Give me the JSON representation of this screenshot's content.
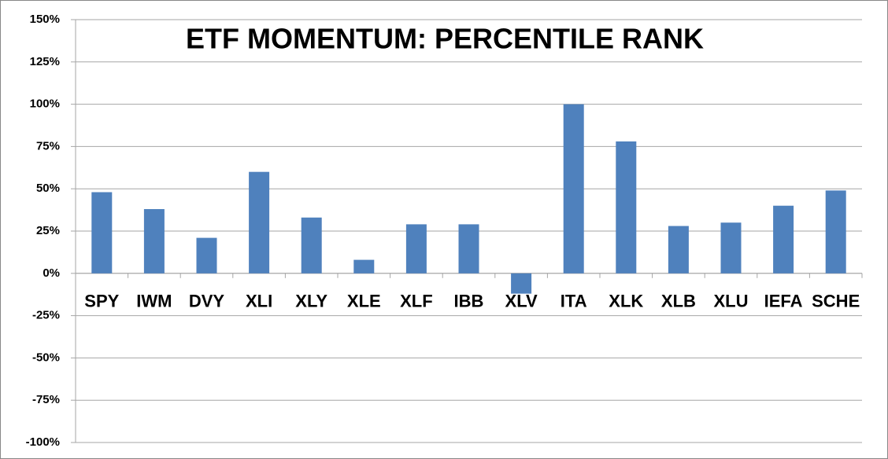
{
  "chart_data": {
    "type": "bar",
    "title": "ETF MOMENTUM: PERCENTILE RANK",
    "categories": [
      "SPY",
      "IWM",
      "DVY",
      "XLI",
      "XLY",
      "XLE",
      "XLF",
      "IBB",
      "XLV",
      "ITA",
      "XLK",
      "XLB",
      "XLU",
      "IEFA",
      "SCHE"
    ],
    "values": [
      48,
      38,
      21,
      60,
      33,
      8,
      29,
      29,
      -12,
      100,
      78,
      28,
      30,
      40,
      49
    ],
    "color": "#4f81bd",
    "ylim": [
      -100,
      150
    ],
    "yticks": [
      {
        "value": -100,
        "label": "-100%"
      },
      {
        "value": -75,
        "label": "-75%"
      },
      {
        "value": -50,
        "label": "-50%"
      },
      {
        "value": -25,
        "label": "-25%"
      },
      {
        "value": 0,
        "label": "0%"
      },
      {
        "value": 25,
        "label": "25%"
      },
      {
        "value": 50,
        "label": "50%"
      },
      {
        "value": 75,
        "label": "75%"
      },
      {
        "value": 100,
        "label": "100%"
      },
      {
        "value": 125,
        "label": "125%"
      },
      {
        "value": 150,
        "label": "150%"
      }
    ],
    "grid": true
  }
}
